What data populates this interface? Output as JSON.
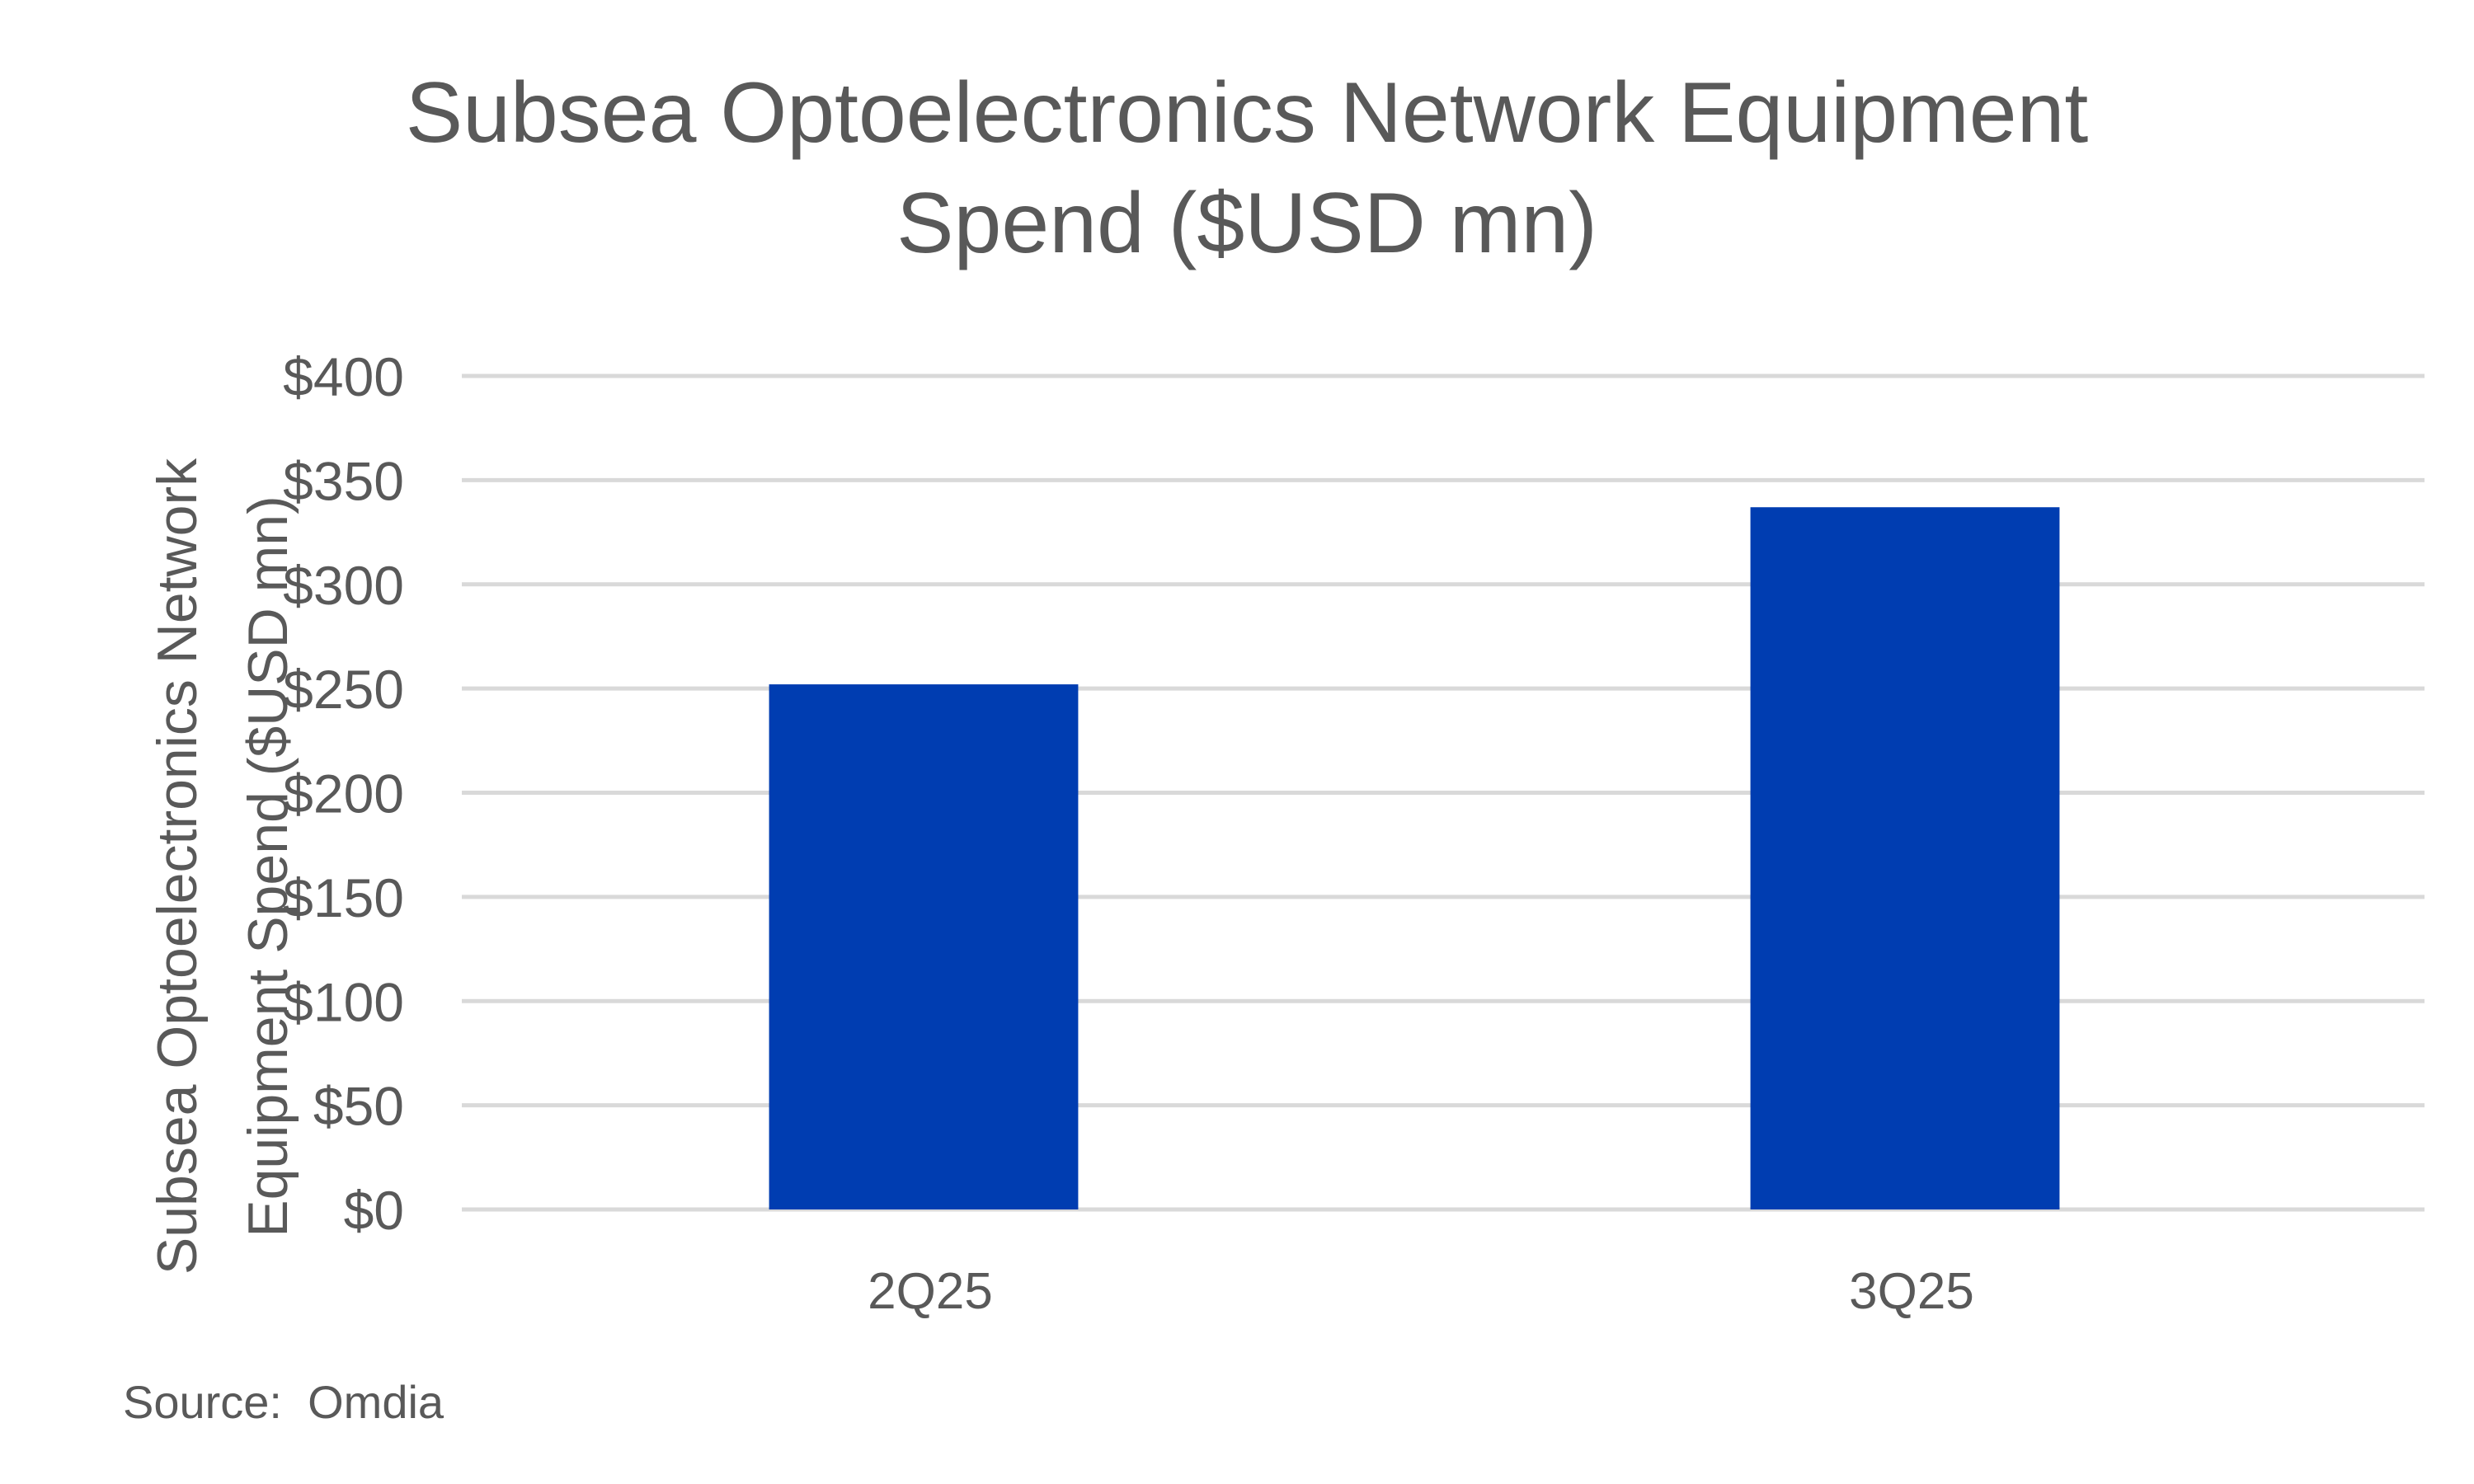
{
  "chart_data": {
    "type": "bar",
    "title_lines": [
      "Subsea Optoelectronics Network Equipment",
      "Spend ($USD mn)"
    ],
    "ylabel_lines": [
      "Subsea Optoelectronics Network",
      "Equipment Spend ($USD mn)"
    ],
    "xlabel": "",
    "categories": [
      "2Q25",
      "3Q25"
    ],
    "values": [
      252,
      337
    ],
    "ylim": [
      0,
      400
    ],
    "yticks": [
      0,
      50,
      100,
      150,
      200,
      250,
      300,
      350,
      400
    ],
    "ytick_labels": [
      "$0",
      "$50",
      "$100",
      "$150",
      "$200",
      "$250",
      "$300",
      "$350",
      "$400"
    ],
    "grid": true,
    "legend": "none",
    "bar_color": "#003DB1",
    "grid_color": "#D9D9D9"
  },
  "source": "Source:  Omdia"
}
